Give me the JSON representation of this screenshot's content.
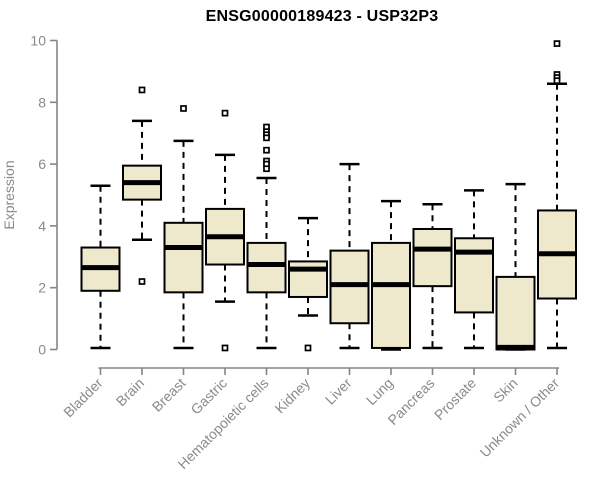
{
  "title": "ENSG00000189423 - USP32P3",
  "colors": {
    "background": "#ffffff",
    "box_fill": "#EEE8CD",
    "box_stroke": "#000000",
    "median": "#000000",
    "whisker": "#000000",
    "outlier_stroke": "#000000",
    "axis": "#858585",
    "tick_label": "#8a8a8a",
    "title": "#000000"
  },
  "chart_data": {
    "type": "boxplot",
    "title": "ENSG00000189423 - USP32P3",
    "xlabel": "",
    "ylabel": "Expression",
    "ylim": [
      0,
      10
    ],
    "yticks": [
      0,
      2,
      4,
      6,
      8,
      10
    ],
    "grid": false,
    "legend": false,
    "categories": [
      "Bladder",
      "Brain",
      "Breast",
      "Gastric",
      "Hematopoietic cells",
      "Kidney",
      "Liver",
      "Lung",
      "Pancreas",
      "Prostate",
      "Skin",
      "Unknown / Other"
    ],
    "series": [
      {
        "name": "Bladder",
        "whisker_low": 0.05,
        "q1": 1.9,
        "median": 2.65,
        "q3": 3.3,
        "whisker_high": 5.3,
        "outliers": []
      },
      {
        "name": "Brain",
        "whisker_low": 3.55,
        "q1": 4.85,
        "median": 5.4,
        "q3": 5.95,
        "whisker_high": 7.4,
        "outliers": [
          8.4,
          2.2
        ]
      },
      {
        "name": "Breast",
        "whisker_low": 0.05,
        "q1": 1.85,
        "median": 3.3,
        "q3": 4.1,
        "whisker_high": 6.75,
        "outliers": [
          7.8
        ]
      },
      {
        "name": "Gastric",
        "whisker_low": 1.55,
        "q1": 2.75,
        "median": 3.65,
        "q3": 4.55,
        "whisker_high": 6.3,
        "outliers": [
          7.65,
          0.05
        ]
      },
      {
        "name": "Hematopoietic cells",
        "whisker_low": 0.05,
        "q1": 1.85,
        "median": 2.75,
        "q3": 3.45,
        "whisker_high": 5.55,
        "outliers": [
          7.2,
          7.05,
          6.95,
          6.85,
          6.45,
          6.1,
          6.0,
          5.85
        ]
      },
      {
        "name": "Kidney",
        "whisker_low": 1.1,
        "q1": 1.7,
        "median": 2.6,
        "q3": 2.85,
        "whisker_high": 4.25,
        "outliers": [
          0.05
        ]
      },
      {
        "name": "Liver",
        "whisker_low": 0.05,
        "q1": 0.85,
        "median": 2.1,
        "q3": 3.2,
        "whisker_high": 6.0,
        "outliers": []
      },
      {
        "name": "Lung",
        "whisker_low": 0.0,
        "q1": 0.05,
        "median": 2.1,
        "q3": 3.45,
        "whisker_high": 4.8,
        "outliers": []
      },
      {
        "name": "Pancreas",
        "whisker_low": 0.05,
        "q1": 2.05,
        "median": 3.25,
        "q3": 3.9,
        "whisker_high": 4.7,
        "outliers": []
      },
      {
        "name": "Prostate",
        "whisker_low": 0.05,
        "q1": 1.2,
        "median": 3.15,
        "q3": 3.6,
        "whisker_high": 5.15,
        "outliers": []
      },
      {
        "name": "Skin",
        "whisker_low": 0.0,
        "q1": 0.0,
        "median": 0.07,
        "q3": 2.35,
        "whisker_high": 5.35,
        "outliers": []
      },
      {
        "name": "Unknown / Other",
        "whisker_low": 0.05,
        "q1": 1.65,
        "median": 3.1,
        "q3": 4.5,
        "whisker_high": 8.6,
        "outliers": [
          9.9,
          8.9,
          8.8,
          8.7
        ]
      }
    ]
  }
}
